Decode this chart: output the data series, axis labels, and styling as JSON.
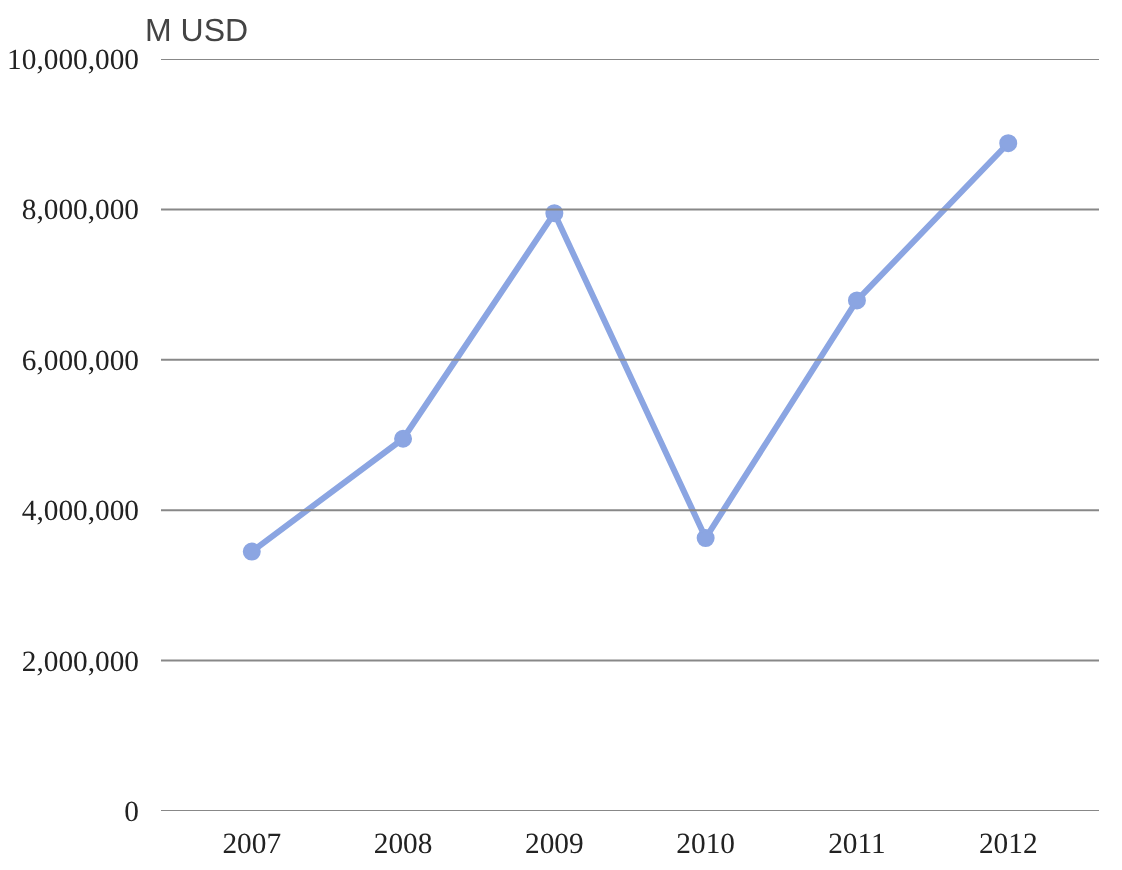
{
  "chart_data": {
    "type": "line",
    "ylabel": "M USD",
    "categories": [
      "2007",
      "2008",
      "2009",
      "2010",
      "2011",
      "2012"
    ],
    "series": [
      {
        "color": "#8ba5e2",
        "values": [
          3450000,
          4950000,
          7950000,
          3630000,
          6790000,
          8880000
        ]
      }
    ],
    "ylim": [
      0,
      10000000
    ],
    "yticks": [
      {
        "value": 0,
        "label": "0"
      },
      {
        "value": 2000000,
        "label": "2,000,000"
      },
      {
        "value": 4000000,
        "label": "4,000,000"
      },
      {
        "value": 6000000,
        "label": "6,000,000"
      },
      {
        "value": 8000000,
        "label": "8,000,000"
      },
      {
        "value": 10000000,
        "label": "10,000,000"
      }
    ],
    "grid": "y",
    "marker": "circle",
    "line_style": "solid"
  }
}
